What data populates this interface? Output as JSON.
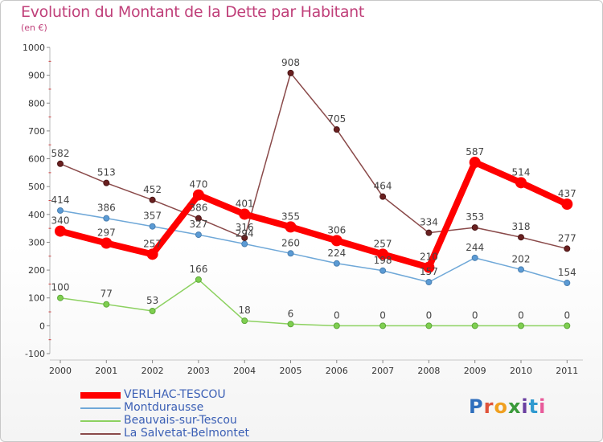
{
  "title": "Evolution du Montant de la Dette par Habitant",
  "subtitle": "(en €)",
  "logo": {
    "text": "Proxiti",
    "letter_colors": [
      "#2f6fbd",
      "#e0533a",
      "#f0a020",
      "#3a9a3a",
      "#6a3fa0",
      "#2f9ad0",
      "#e85a9a"
    ]
  },
  "chart_data": {
    "type": "line",
    "title": "Evolution du Montant de la Dette par Habitant",
    "ylabel": "(en €)",
    "xlabel": "",
    "x": [
      "2000",
      "2001",
      "2002",
      "2003",
      "2004",
      "2005",
      "2006",
      "2007",
      "2008",
      "2009",
      "2010",
      "2011"
    ],
    "ylim": [
      -100,
      1000
    ],
    "yticks": [
      "-100",
      "0",
      "100",
      "200",
      "300",
      "400",
      "500",
      "600",
      "700",
      "800",
      "900",
      "1000"
    ],
    "grid": false,
    "legend_position": "bottom-left",
    "series": [
      {
        "name": "VERLHAC-TESCOU",
        "color": "#ff0000",
        "values": [
          340,
          297,
          257,
          470,
          401,
          355,
          306,
          257,
          210,
          587,
          514,
          437
        ],
        "labels": [
          "340",
          "297",
          "257",
          "470",
          "401",
          "355",
          "306",
          "257",
          "210",
          "587",
          "514",
          "437"
        ]
      },
      {
        "name": "Montdurausse",
        "color": "#6fa8d8",
        "values": [
          414,
          386,
          357,
          327,
          294,
          260,
          224,
          198,
          157,
          244,
          202,
          154
        ],
        "labels": [
          "414",
          "386",
          "357",
          "327",
          "294",
          "260",
          "224",
          "198",
          "157",
          "244",
          "202",
          "154"
        ]
      },
      {
        "name": "Beauvais-sur-Tescou",
        "color": "#8cd160",
        "values": [
          100,
          77,
          53,
          166,
          18,
          6,
          0,
          0,
          0,
          0,
          0,
          0
        ],
        "labels": [
          "100",
          "77",
          "53",
          "166",
          "18",
          "6",
          "0",
          "0",
          "0",
          "0",
          "0",
          "0"
        ]
      },
      {
        "name": "La Salvetat-Belmontet",
        "color": "#8a4a4a",
        "values": [
          582,
          513,
          452,
          386,
          316,
          908,
          705,
          464,
          334,
          353,
          318,
          277
        ],
        "labels": [
          "582",
          "513",
          "452",
          "386",
          "316",
          "908",
          "705",
          "464",
          "334",
          "353",
          "318",
          "277"
        ]
      }
    ]
  }
}
